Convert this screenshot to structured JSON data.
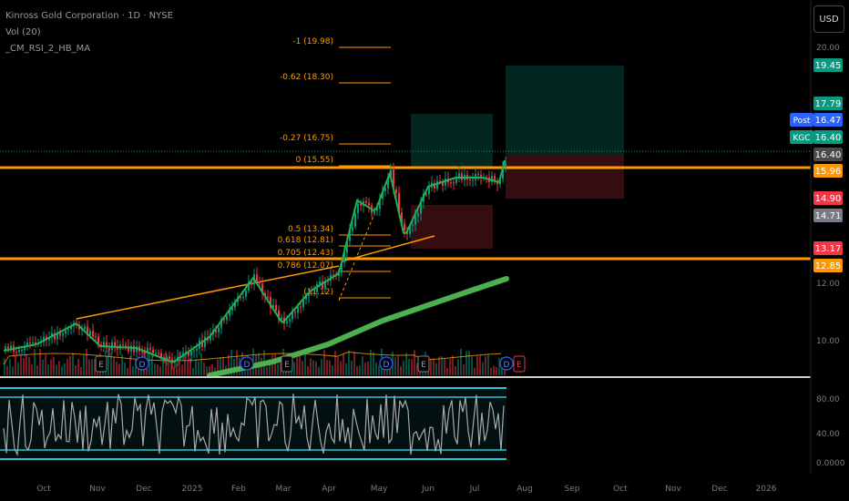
{
  "header": {
    "symbol": "Kinross Gold Corporation · 1D · NYSE",
    "indicator_1": "Vol (20)",
    "indicator_2": "_CM_RSI_2_HB_MA",
    "currency": "USD"
  },
  "chart_data": {
    "type": "candlestick",
    "price_axis": {
      "ticks": [
        "20.00",
        "12.00",
        "10.00"
      ],
      "labels": [
        {
          "text": "19.45",
          "color": "#089981"
        },
        {
          "text": "17.79",
          "color": "#089981"
        },
        {
          "text": "16.47",
          "color": "#2962ff",
          "tag": "Post"
        },
        {
          "text": "16.40",
          "color": "#089981",
          "tag": "KGC"
        },
        {
          "text": "16.40",
          "color": "#4a4a4a"
        },
        {
          "text": "15.96",
          "color": "#ff9800"
        },
        {
          "text": "14.90",
          "color": "#f23645"
        },
        {
          "text": "14.71",
          "color": "#787b86"
        },
        {
          "text": "13.17",
          "color": "#f23645"
        },
        {
          "text": "12.85",
          "color": "#ff9800"
        }
      ]
    },
    "rsi_axis": {
      "ticks": [
        "80.00",
        "40.00",
        "0.0000"
      ]
    },
    "time_axis": [
      "Oct",
      "Nov",
      "Dec",
      "2025",
      "Feb",
      "Mar",
      "Apr",
      "May",
      "Jun",
      "Jul",
      "Aug",
      "Sep",
      "Oct",
      "Nov",
      "Dec",
      "2026"
    ],
    "fib_levels": [
      {
        "label": "-1 (19.98)",
        "value": 19.98
      },
      {
        "label": "-0.62 (18.30)",
        "value": 18.3
      },
      {
        "label": "-0.27 (16.75)",
        "value": 16.75
      },
      {
        "label": "0 (15.55)",
        "value": 15.55
      },
      {
        "label": "0.5 (13.34)",
        "value": 13.34
      },
      {
        "label": "0.618 (12.81)",
        "value": 12.81
      },
      {
        "label": "0.705 (12.43)",
        "value": 12.43
      },
      {
        "label": "0.786 (12.07)",
        "value": 12.07
      },
      {
        "label": "(11.12)",
        "value": 11.12
      }
    ],
    "horizontal_levels": [
      15.96,
      12.85
    ],
    "events": [
      "E",
      "D",
      "D",
      "E",
      "D",
      "E",
      "D",
      "E"
    ],
    "colors": {
      "up": "#089981",
      "down": "#f23645",
      "fib": "#ff9800",
      "ma_fast": "#22b14c",
      "ma_slow": "#4caf50",
      "rsi_band": "#26c6da"
    }
  }
}
